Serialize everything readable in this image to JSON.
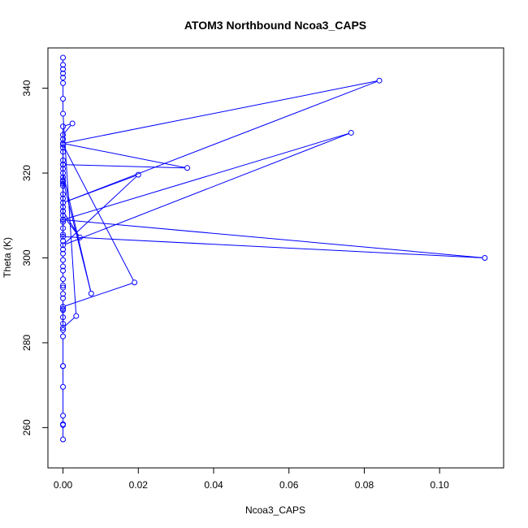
{
  "chart_data": {
    "type": "scatter",
    "title": "ATOM3 Northbound Ncoa3_CAPS",
    "xlabel": "Ncoa3_CAPS",
    "ylabel": "Theta (K)",
    "xlim": [
      -0.004,
      0.117
    ],
    "ylim": [
      250.5,
      349.5
    ],
    "xticks": [
      0.0,
      0.02,
      0.04,
      0.06,
      0.08,
      0.1
    ],
    "xtick_labels": [
      "0.00",
      "0.02",
      "0.04",
      "0.06",
      "0.08",
      "0.10"
    ],
    "yticks": [
      260,
      280,
      300,
      320,
      340
    ],
    "ytick_labels": [
      "260",
      "280",
      "300",
      "320",
      "340"
    ],
    "grid": false,
    "legend": "none",
    "color": "#0000ff",
    "marker": "open-circle",
    "connect_lines": true,
    "series": [
      {
        "x": [
          0,
          0,
          0,
          0,
          0,
          0,
          0,
          0,
          0,
          0,
          0,
          0,
          0,
          0,
          0,
          0,
          0,
          0,
          0,
          0,
          0,
          0,
          0,
          0,
          0,
          0,
          0.0025,
          0,
          0,
          0,
          0,
          0,
          0,
          0,
          0.0765,
          0,
          0.02,
          0,
          0.084,
          0,
          0.033,
          0,
          0,
          0,
          0,
          0,
          0,
          0.112,
          0,
          0,
          0,
          0.0045,
          0,
          0,
          0,
          0,
          0,
          0.0075,
          0,
          0,
          0,
          0,
          0.019,
          0,
          0,
          0,
          0.0035,
          0,
          0,
          0,
          0,
          0,
          0,
          0,
          0
        ],
        "y": [
          257.2,
          260.6,
          260.8,
          262.8,
          269.6,
          274.5,
          274.5,
          281.5,
          283.0,
          284.5,
          287.7,
          288.0,
          290.5,
          291.5,
          293.0,
          293.5,
          295.0,
          297.0,
          298.0,
          299.5,
          301.0,
          302.0,
          304.0,
          326.0,
          328.0,
          331.0,
          331.7,
          329.0,
          323.0,
          321.0,
          319.0,
          317.0,
          314.0,
          309.0,
          329.5,
          303.0,
          319.6,
          313.0,
          341.8,
          327.0,
          321.2,
          322.0,
          312.0,
          308.5,
          307.0,
          305.5,
          305.0,
          300.0,
          309.0,
          311.0,
          310.0,
          304.8,
          311.0,
          318.0,
          315.0,
          317.5,
          318.3,
          291.6,
          320.0,
          322.0,
          325.0,
          326.7,
          294.2,
          288.5,
          286.0,
          283.5,
          286.3,
          334.0,
          337.5,
          341.2,
          342.5,
          343.5,
          344.5,
          345.5,
          347.2
        ]
      }
    ]
  }
}
